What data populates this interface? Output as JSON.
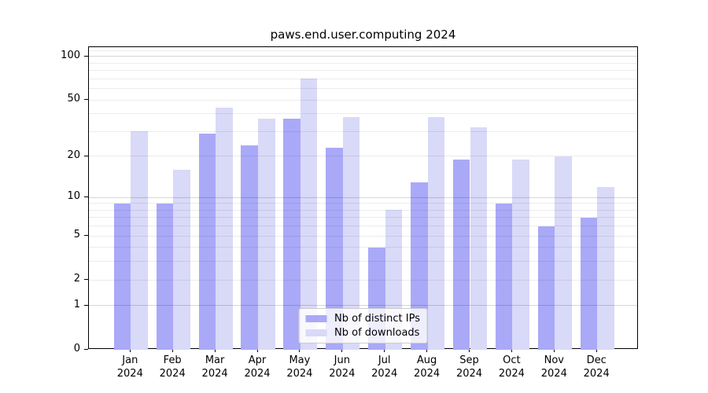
{
  "chart_data": {
    "type": "bar",
    "title": "paws.end.user.computing 2024",
    "categories": [
      "Jan",
      "Feb",
      "Mar",
      "Apr",
      "May",
      "Jun",
      "Jul",
      "Aug",
      "Sep",
      "Oct",
      "Nov",
      "Dec"
    ],
    "x_tick_second_line": "2024",
    "series": [
      {
        "name": "Nb of distinct IPs",
        "color": "#a9a9f8",
        "values": [
          9,
          9,
          29,
          24,
          37,
          23,
          4,
          13,
          19,
          9,
          6,
          7
        ]
      },
      {
        "name": "Nb of downloads",
        "color": "#d9d9f8",
        "values": [
          30,
          16,
          44,
          37,
          70,
          38,
          8,
          38,
          32,
          19,
          20,
          12
        ]
      }
    ],
    "yscale": "log1p",
    "ylim": [
      0,
      116
    ],
    "y_ticks": [
      0,
      1,
      2,
      5,
      10,
      20,
      50,
      100
    ],
    "grid": {
      "major_lines": [
        1,
        10,
        100
      ],
      "minor_lines": [
        2,
        3,
        4,
        5,
        6,
        7,
        8,
        9,
        20,
        30,
        40,
        50,
        60,
        70,
        80,
        90,
        110
      ]
    },
    "legend": {
      "position": "lower center"
    }
  },
  "colors": {
    "background": "#ffffff",
    "axis": "#000000",
    "grid_minor": "rgba(0,0,0,0.075)",
    "grid_major": "rgba(0,0,0,0.16)",
    "legend_border": "#cccccc"
  }
}
